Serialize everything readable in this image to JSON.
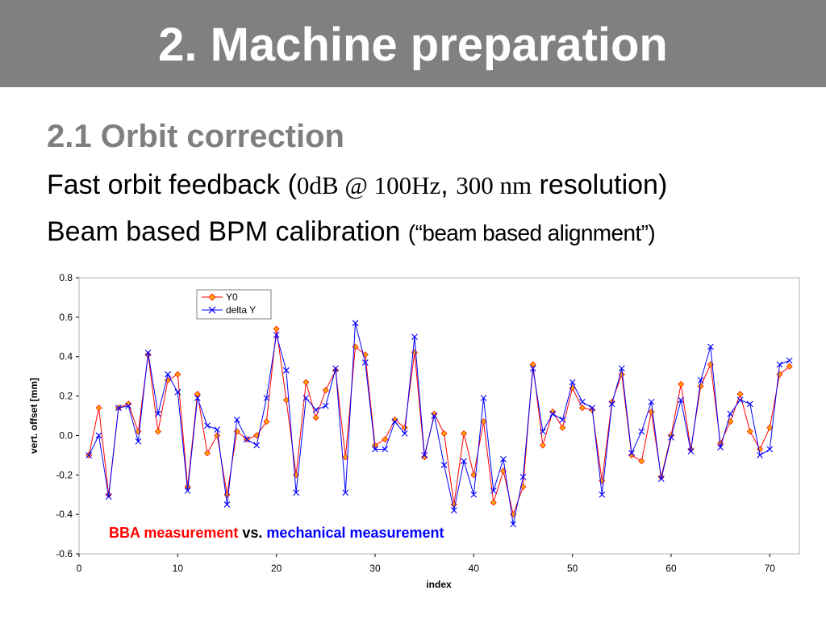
{
  "header": {
    "title": "2. Machine preparation"
  },
  "section": {
    "title": "2.1 Orbit correction",
    "line1_start": "Fast orbit feedback (",
    "line1_spec_1": "0dB @ 100Hz",
    "line1_sep": ", ",
    "line1_spec_2": "300 nm",
    "line1_end": " resolution)",
    "line2_start": "Beam based BPM calibration ",
    "line2_quote": "(“beam based alignment”)"
  },
  "colors": {
    "header_bg": "#808080",
    "y0": "#ff0000",
    "y0_marker": "#ffa500",
    "delta": "#0000ff"
  },
  "chart_data": {
    "type": "line",
    "xlabel": "index",
    "ylabel": "vert. offset [mm]",
    "xlim": [
      0,
      73
    ],
    "ylim": [
      -0.6,
      0.8
    ],
    "x_ticks": [
      0,
      10,
      20,
      30,
      40,
      50,
      60,
      70
    ],
    "y_ticks": [
      -0.6,
      -0.4,
      -0.2,
      0.0,
      0.2,
      0.4,
      0.6,
      0.8
    ],
    "grid": false,
    "legend_position": "top-left",
    "annotation": {
      "part1": "BBA measurement",
      "part2": " vs. ",
      "part3": "mechanical measurement"
    },
    "x": [
      1,
      2,
      3,
      4,
      5,
      6,
      7,
      8,
      9,
      10,
      11,
      12,
      13,
      14,
      15,
      16,
      17,
      18,
      19,
      20,
      21,
      22,
      23,
      24,
      25,
      26,
      27,
      28,
      29,
      30,
      31,
      32,
      33,
      34,
      35,
      36,
      37,
      38,
      39,
      40,
      41,
      42,
      43,
      44,
      45,
      46,
      47,
      48,
      49,
      50,
      51,
      52,
      53,
      54,
      55,
      56,
      57,
      58,
      59,
      60,
      61,
      62,
      63,
      64,
      65,
      66,
      67,
      68,
      69,
      70,
      71,
      72
    ],
    "series": [
      {
        "name": "Y0",
        "marker": "diamond",
        "values": [
          -0.1,
          0.14,
          -0.3,
          0.14,
          0.16,
          0.02,
          0.41,
          0.02,
          0.28,
          0.31,
          -0.26,
          0.21,
          -0.09,
          0.0,
          -0.3,
          0.02,
          -0.02,
          0.0,
          0.07,
          0.54,
          0.18,
          -0.2,
          0.27,
          0.09,
          0.23,
          0.33,
          -0.11,
          0.45,
          0.41,
          -0.05,
          -0.02,
          0.08,
          0.04,
          0.42,
          -0.11,
          0.11,
          0.01,
          -0.35,
          0.01,
          -0.2,
          0.07,
          -0.34,
          -0.18,
          -0.4,
          -0.26,
          0.36,
          -0.05,
          0.12,
          0.04,
          0.24,
          0.14,
          0.13,
          -0.23,
          0.17,
          0.31,
          -0.1,
          -0.13,
          0.12,
          -0.21,
          0.0,
          0.26,
          -0.07,
          0.25,
          0.36,
          -0.04,
          0.07,
          0.21,
          0.02,
          -0.07,
          0.04,
          0.31,
          0.35
        ]
      },
      {
        "name": "delta Y",
        "marker": "x",
        "values": [
          -0.1,
          0.0,
          -0.31,
          0.14,
          0.15,
          -0.03,
          0.42,
          0.11,
          0.31,
          0.22,
          -0.28,
          0.19,
          0.05,
          0.03,
          -0.35,
          0.08,
          -0.02,
          -0.05,
          0.19,
          0.51,
          0.33,
          -0.29,
          0.19,
          0.13,
          0.15,
          0.34,
          -0.29,
          0.57,
          0.37,
          -0.07,
          -0.07,
          0.07,
          0.01,
          0.5,
          -0.1,
          0.1,
          -0.15,
          -0.38,
          -0.13,
          -0.3,
          0.19,
          -0.28,
          -0.12,
          -0.45,
          -0.21,
          0.34,
          0.02,
          0.11,
          0.08,
          0.27,
          0.17,
          0.14,
          -0.3,
          0.16,
          0.34,
          -0.09,
          0.02,
          0.17,
          -0.22,
          -0.01,
          0.18,
          -0.08,
          0.28,
          0.45,
          -0.06,
          0.11,
          0.18,
          0.16,
          -0.1,
          -0.07,
          0.36,
          0.38
        ]
      }
    ]
  }
}
